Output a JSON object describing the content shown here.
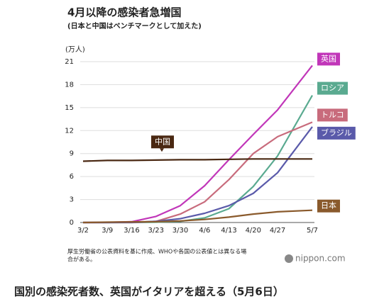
{
  "chart_data": {
    "type": "line",
    "title": "4月以降の感染者急増国",
    "subtitle": "(日本と中国はベンチマークとして加えた)",
    "ylabel": "(万人)",
    "x": [
      "3/2",
      "3/9",
      "3/16",
      "3/23",
      "3/30",
      "4/6",
      "4/13",
      "4/20",
      "4/27",
      "5/7"
    ],
    "xticks": [
      "3/2",
      "3/9",
      "3/16",
      "3/23",
      "3/30",
      "4/6",
      "4/13",
      "4/20",
      "4/27",
      "5/7"
    ],
    "ylim": [
      0,
      21
    ],
    "yticks": [
      0,
      3,
      6,
      9,
      12,
      15,
      18,
      21
    ],
    "grid": true,
    "series": [
      {
        "name": "英国",
        "color": "#c136b9",
        "values": [
          0,
          0.01,
          0.1,
          0.8,
          2.2,
          4.8,
          8.2,
          11.5,
          14.7,
          20.5
        ]
      },
      {
        "name": "ロシア",
        "color": "#5aaa90",
        "values": [
          0,
          0,
          0,
          0.05,
          0.15,
          0.6,
          1.8,
          4.7,
          8.7,
          16.6
        ]
      },
      {
        "name": "トルコ",
        "color": "#c86b7c",
        "values": [
          0,
          0,
          0,
          0.15,
          1.1,
          2.7,
          5.6,
          9.0,
          11.2,
          13.1
        ]
      },
      {
        "name": "ブラジル",
        "color": "#5a5aaa",
        "values": [
          0,
          0,
          0.02,
          0.15,
          0.5,
          1.2,
          2.2,
          3.8,
          6.5,
          12.5
        ]
      },
      {
        "name": "中国",
        "color": "#4a2812",
        "values": [
          8.0,
          8.1,
          8.1,
          8.15,
          8.2,
          8.2,
          8.25,
          8.3,
          8.3,
          8.3
        ]
      },
      {
        "name": "日本",
        "color": "#8a5a2c",
        "values": [
          0,
          0.05,
          0.08,
          0.1,
          0.2,
          0.4,
          0.7,
          1.1,
          1.4,
          1.6
        ]
      }
    ],
    "note": [
      "厚生労働省の公表資料を基に作成、WHOや各国の公表値とは異なる場",
      "合がある。"
    ],
    "credit": "nippon.com",
    "caption": "国別の感染死者数、英国がイタリアを超える（5月6日）"
  }
}
